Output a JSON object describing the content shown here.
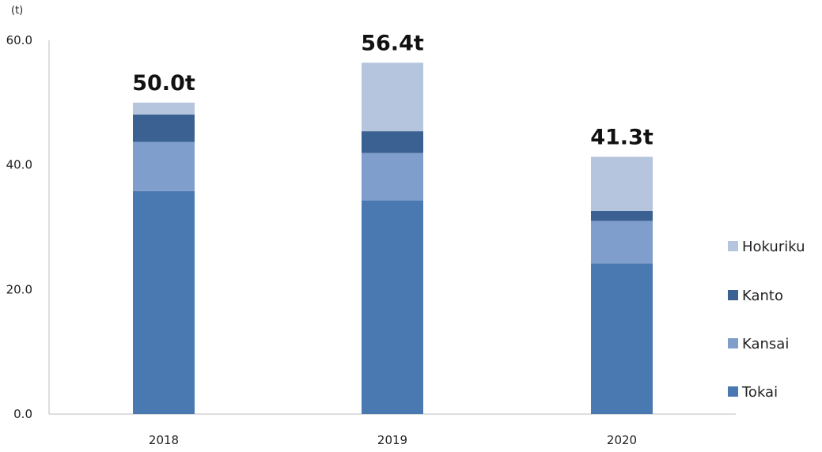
{
  "chart_data": {
    "type": "bar",
    "stacked": true,
    "unit_label": "(t)",
    "categories": [
      "2018",
      "2019",
      "2020"
    ],
    "series": [
      {
        "name": "Tokai",
        "values": [
          35.8,
          34.3,
          24.2
        ],
        "color": "#4a78b0"
      },
      {
        "name": "Kansai",
        "values": [
          7.9,
          7.6,
          6.8
        ],
        "color": "#7f9ecb"
      },
      {
        "name": "Kanto",
        "values": [
          4.4,
          3.5,
          1.6
        ],
        "color": "#3b6192"
      },
      {
        "name": "Hokuriku",
        "values": [
          1.9,
          11.0,
          8.7
        ],
        "color": "#b5c5de"
      }
    ],
    "totals": [
      "50.0t",
      "56.4t",
      "41.3t"
    ],
    "ylim": [
      0,
      60
    ],
    "yticks": [
      "0.0",
      "20.0",
      "40.0",
      "60.0"
    ],
    "legend_position": "right",
    "grid": false
  }
}
